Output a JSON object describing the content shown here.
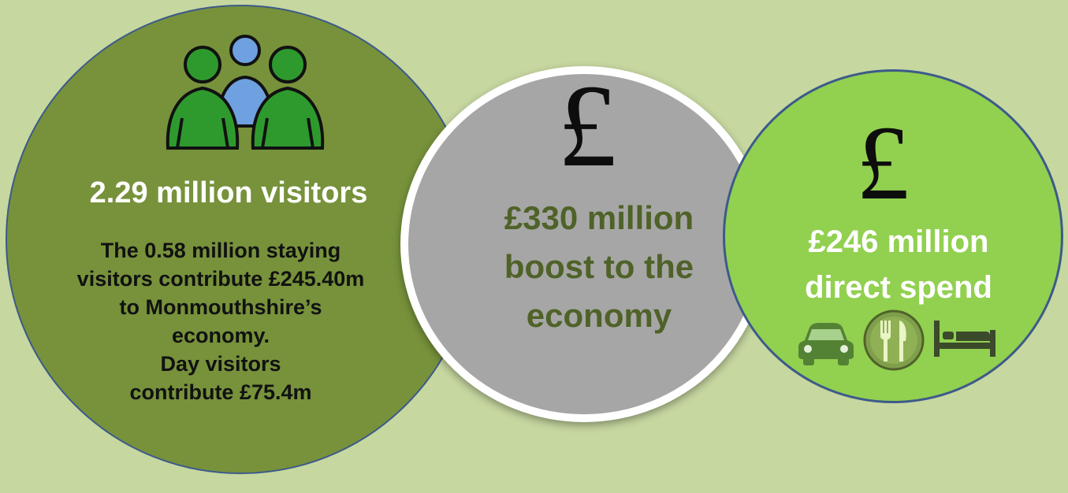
{
  "visitors": {
    "headline": "2.29 million visitors",
    "body_lines": [
      "The 0.58 million staying",
      "visitors contribute £245.40m",
      "to Monmouthshire’s",
      "economy.",
      "Day visitors",
      "contribute £75.4m"
    ],
    "icon": "people-icon"
  },
  "economy_boost": {
    "symbol": "£",
    "lines": [
      "£330  million",
      "boost to the",
      "economy"
    ]
  },
  "direct_spend": {
    "symbol": "£",
    "lines": [
      "£246  million",
      "direct spend"
    ],
    "icons": [
      "car-icon",
      "cutlery-icon",
      "bed-icon"
    ]
  },
  "colors": {
    "background": "#c6d7a0",
    "left_circle": "#77923b",
    "middle_circle": "#a6a6a6",
    "right_circle": "#92d050",
    "middle_text": "#4f6228",
    "circle_border": "#3d5a8a"
  }
}
